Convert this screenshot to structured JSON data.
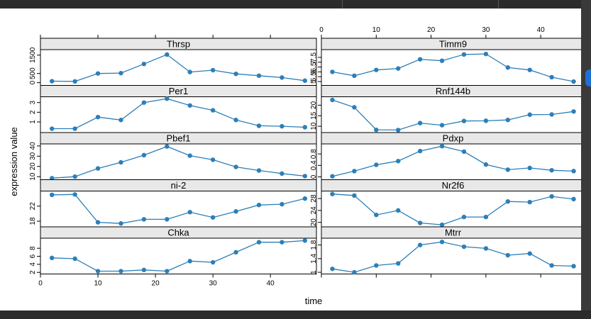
{
  "chart_data": {
    "type": "line",
    "layout": "lattice-2-columns",
    "xlabel": "time",
    "ylabel": "expression value",
    "x": [
      2,
      6,
      10,
      14,
      18,
      22,
      26,
      30,
      34,
      38,
      42,
      46
    ],
    "xlim": [
      0,
      48
    ],
    "xticks": [
      0,
      10,
      20,
      30,
      40
    ],
    "colors": {
      "series": "#2c7fb8",
      "strip": "#e8e8e8",
      "frame": "#000000"
    },
    "panels": [
      {
        "name": "Thrsp",
        "ylim": [
          -150,
          1800
        ],
        "yticks": [
          0,
          500,
          1500
        ],
        "values": [
          80,
          70,
          500,
          520,
          1020,
          1530,
          580,
          680,
          480,
          380,
          280,
          110
        ]
      },
      {
        "name": "Per1",
        "ylim": [
          -0.1,
          3.6
        ],
        "yticks": [
          1,
          2,
          3
        ],
        "values": [
          0.3,
          0.3,
          1.5,
          1.2,
          3.0,
          3.4,
          2.7,
          2.2,
          1.2,
          0.6,
          0.55,
          0.45
        ]
      },
      {
        "name": "Pbef1",
        "ylim": [
          7,
          42
        ],
        "yticks": [
          10,
          20,
          30,
          40
        ],
        "values": [
          8.5,
          10,
          18,
          24,
          31,
          39.5,
          30.5,
          26.5,
          19.5,
          16,
          13,
          10.5
        ]
      },
      {
        "name": "ni-2",
        "ylim": [
          16.5,
          26
        ],
        "yticks": [
          18,
          22
        ],
        "values": [
          25,
          25.1,
          17.7,
          17.4,
          18.5,
          18.5,
          20.4,
          19,
          20.6,
          22.3,
          22.5,
          24
        ]
      },
      {
        "name": "Chka",
        "ylim": [
          1.6,
          10.5
        ],
        "yticks": [
          2,
          4,
          6,
          8
        ],
        "values": [
          5.6,
          5.4,
          2.3,
          2.3,
          2.6,
          2.3,
          4.8,
          4.5,
          7,
          9.5,
          9.5,
          9.9
        ]
      },
      {
        "name": "Timm9",
        "ylim": [
          4.6,
          8.3
        ],
        "yticks": [
          5,
          5.5,
          6,
          6.5,
          7,
          7.5
        ],
        "values": [
          6.0,
          5.6,
          6.2,
          6.35,
          7.3,
          7.15,
          7.8,
          7.85,
          6.45,
          6.2,
          5.45,
          5.0
        ]
      },
      {
        "name": "Rnf144b",
        "ylim": [
          7,
          24
        ],
        "yticks": [
          10,
          15,
          20
        ],
        "values": [
          22.5,
          19,
          8.3,
          8.2,
          11.5,
          10.5,
          12.5,
          12.6,
          13,
          15.5,
          15.6,
          17
        ]
      },
      {
        "name": "Pdxp",
        "ylim": [
          -0.1,
          1.15
        ],
        "yticks": [
          0,
          0.4,
          0.8
        ],
        "values": [
          0.02,
          0.2,
          0.42,
          0.55,
          0.9,
          1.07,
          0.88,
          0.43,
          0.25,
          0.31,
          0.23,
          0.2
        ]
      },
      {
        "name": "Nr2f6",
        "ylim": [
          18.5,
          30.5
        ],
        "yticks": [
          20,
          24,
          28
        ],
        "values": [
          29.5,
          29,
          22.5,
          24,
          19.8,
          19.2,
          21.8,
          21.8,
          27,
          26.8,
          28.7,
          27.8
        ]
      },
      {
        "name": "Mtrr",
        "ylim": [
          0.95,
          2.0
        ],
        "yticks": [
          1,
          1.4,
          1.8
        ],
        "values": [
          1.1,
          1.0,
          1.2,
          1.26,
          1.8,
          1.89,
          1.75,
          1.7,
          1.5,
          1.55,
          1.2,
          1.18
        ]
      }
    ]
  }
}
